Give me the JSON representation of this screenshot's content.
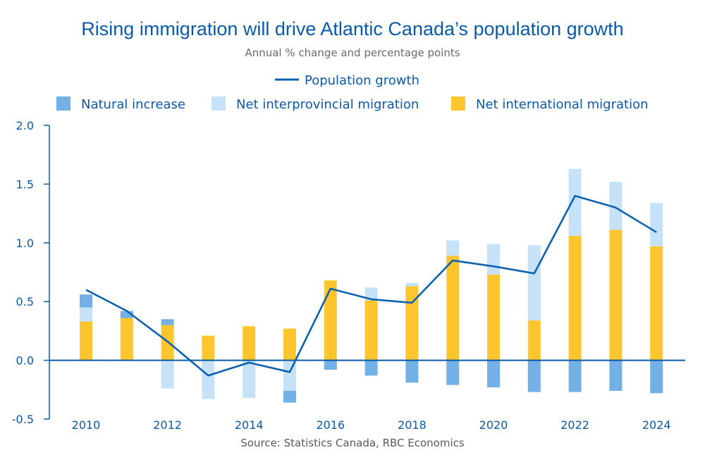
{
  "title": "Rising immigration will drive Atlantic Canada’s population growth",
  "subtitle": "Annual % change and percentage points",
  "source": "Source: Statistics Canada, RBC Economics",
  "colors": {
    "natural": "#72b0e6",
    "interprovincial": "#c6e2f9",
    "international": "#fec52e",
    "line": "#0c62b0",
    "axis": "#0a5aa8"
  },
  "legend": {
    "line": "Population growth",
    "natural": "Natural increase",
    "interprovincial": "Net interprovincial migration",
    "international": "Net international migration"
  },
  "chart_data": {
    "type": "bar",
    "stacked": true,
    "years": [
      2010,
      2011,
      2012,
      2013,
      2014,
      2015,
      2016,
      2017,
      2018,
      2019,
      2020,
      2021,
      2022,
      2023,
      2024
    ],
    "x_tick_labels": [
      "2010",
      "2012",
      "2014",
      "2016",
      "2018",
      "2020",
      "2022",
      "2024"
    ],
    "y_tick_labels": [
      "-0.5",
      "0.0",
      "0.5",
      "1.0",
      "1.5",
      "2.0"
    ],
    "ylim": [
      -0.5,
      2.0
    ],
    "series": [
      {
        "name": "Net international migration",
        "key": "international",
        "values": [
          0.33,
          0.36,
          0.3,
          0.21,
          0.29,
          0.27,
          0.68,
          0.51,
          0.63,
          0.89,
          0.73,
          0.34,
          1.06,
          1.11,
          0.97
        ]
      },
      {
        "name": "Net interprovincial migration",
        "key": "interprovincial",
        "values": [
          0.12,
          0.0,
          -0.24,
          -0.33,
          -0.32,
          -0.26,
          0.0,
          0.11,
          0.03,
          0.13,
          0.26,
          0.64,
          0.57,
          0.41,
          0.37
        ]
      },
      {
        "name": "Natural increase",
        "key": "natural",
        "values": [
          0.11,
          0.06,
          0.05,
          0.0,
          0.0,
          -0.1,
          -0.08,
          -0.13,
          -0.19,
          -0.21,
          -0.23,
          -0.27,
          -0.27,
          -0.26,
          -0.28
        ]
      }
    ],
    "line": {
      "name": "Population growth",
      "values": [
        0.6,
        0.42,
        0.16,
        -0.13,
        -0.02,
        -0.1,
        0.61,
        0.52,
        0.49,
        0.85,
        0.8,
        0.74,
        1.4,
        1.3,
        1.09
      ]
    }
  }
}
